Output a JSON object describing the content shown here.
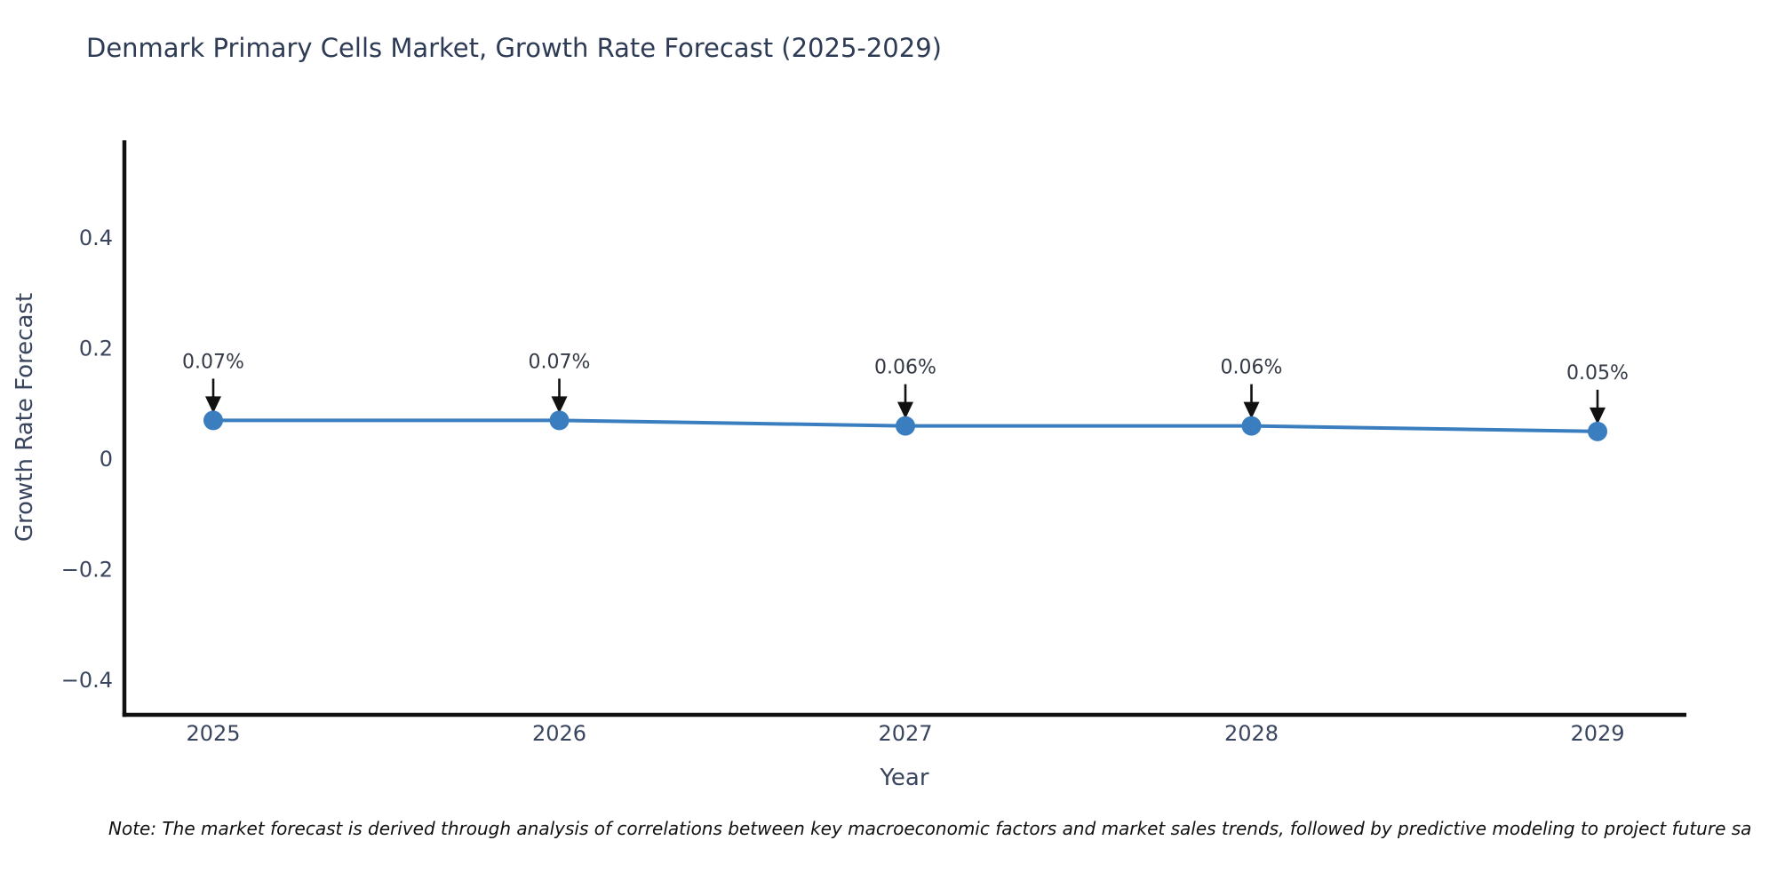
{
  "title": "Denmark Primary Cells Market, Growth Rate Forecast (2025-2029)",
  "note": "Note: The market forecast is derived through analysis of correlations between key macroeconomic factors and market sales trends, followed by predictive modeling to project future sa",
  "chart_data": {
    "type": "line",
    "title": "Denmark Primary Cells Market, Growth Rate Forecast (2025-2029)",
    "xlabel": "Year",
    "ylabel": "Growth Rate Forecast",
    "x": [
      2025,
      2026,
      2027,
      2028,
      2029
    ],
    "categories": [
      "2025",
      "2026",
      "2027",
      "2028",
      "2029"
    ],
    "series": [
      {
        "name": "Growth Rate Forecast",
        "values": [
          0.07,
          0.07,
          0.06,
          0.06,
          0.05
        ]
      }
    ],
    "point_labels": [
      "0.07%",
      "0.07%",
      "0.06%",
      "0.06%",
      "0.05%"
    ],
    "ytick_values": [
      0.4,
      0.2,
      0,
      -0.2,
      -0.4
    ],
    "ytick_labels": [
      "0.4",
      "0.2",
      "0",
      "−0.2",
      "−0.4"
    ],
    "ylim": [
      -0.463,
      0.577
    ],
    "grid": false,
    "legend_position": "none",
    "annotation_style": "value labels above points with downward black arrows",
    "colors": {
      "line": "#3a7ebf",
      "marker": "#3a7ebf",
      "arrow": "#111111",
      "spine": "#111111",
      "title_text": "#2e3b55",
      "tick_text": "#39455e",
      "annotation_text": "#333a45",
      "note_text": "#111111",
      "background": "#ffffff"
    }
  }
}
